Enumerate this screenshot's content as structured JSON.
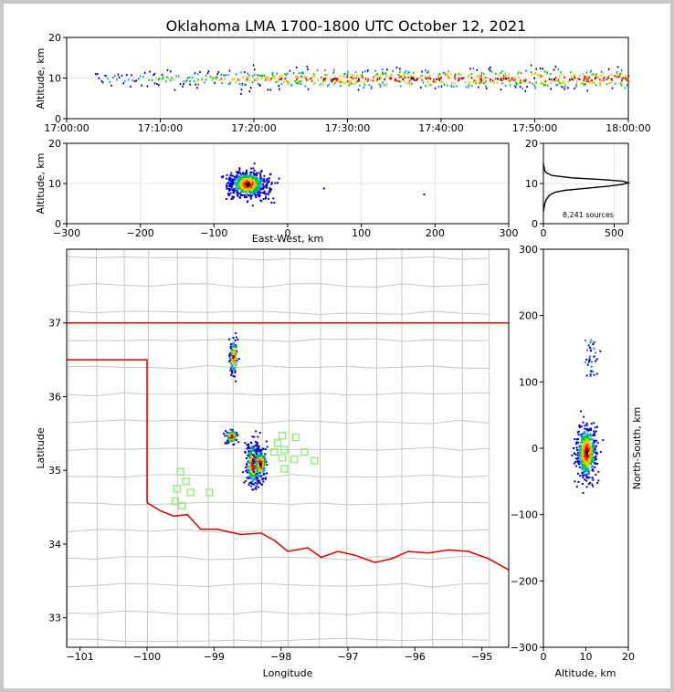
{
  "figure": {
    "title": "Oklahoma LMA 1700-1800 UTC October 12, 2021"
  },
  "chart_data": [
    {
      "id": "time_height",
      "type": "scatter",
      "title": "",
      "xlabel": "",
      "ylabel": "Altitude, km",
      "xticks": [
        "17:00:00",
        "17:10:00",
        "17:20:00",
        "17:30:00",
        "17:40:00",
        "17:50:00",
        "18:00:00"
      ],
      "xlim_minutes": [
        0,
        60
      ],
      "ylim": [
        0,
        20
      ],
      "yticks": [
        0,
        10,
        20
      ],
      "activity_start_min": 3,
      "main_altitude_km": 10,
      "max_altitude_km": 13
    },
    {
      "id": "ew_height",
      "type": "scatter",
      "xlabel": "East-West, km",
      "ylabel": "Altitude, km",
      "xlim": [
        -300,
        300
      ],
      "xticks": [
        -300,
        -200,
        -100,
        0,
        100,
        200,
        300
      ],
      "ylim": [
        0,
        20
      ],
      "yticks": [
        0,
        10,
        20
      ],
      "cluster_center_km": [
        -55,
        10
      ],
      "cluster_half_width_km": 30,
      "outliers_km": [
        [
          184,
          7.5
        ],
        [
          48,
          9
        ]
      ]
    },
    {
      "id": "altitude_histogram",
      "type": "line",
      "xlim": [
        0,
        600
      ],
      "xticks": [
        0,
        500
      ],
      "ylim": [
        0,
        20
      ],
      "yticks": [
        0,
        10,
        20
      ],
      "annotation": "8,241 sources",
      "x": [
        0,
        5,
        10,
        20,
        40,
        80,
        150,
        300,
        450,
        560,
        600,
        560,
        400,
        200,
        60,
        25,
        12,
        8,
        5,
        3,
        2,
        1
      ],
      "y": [
        3,
        4,
        5,
        6,
        7,
        7.8,
        8.3,
        8.8,
        9.3,
        9.8,
        10.2,
        10.6,
        11,
        11.4,
        12,
        12.6,
        13,
        13.5,
        14,
        14.3,
        14.6,
        15
      ]
    },
    {
      "id": "plan_view_map",
      "type": "scatter",
      "xlabel": "Longitude",
      "ylabel": "Latitude",
      "xlim": [
        -101.2,
        -94.6
      ],
      "xticks": [
        -101,
        -100,
        -99,
        -98,
        -97,
        -96,
        -95
      ],
      "ylim": [
        32.6,
        38
      ],
      "yticks": [
        33,
        34,
        35,
        36,
        37
      ],
      "state_border_color": "#e00000",
      "county_line_color": "#c8c8c8",
      "station_color": "#90ee70",
      "lma_stations": [
        [
          -99.55,
          34.75
        ],
        [
          -99.5,
          34.98
        ],
        [
          -99.42,
          34.85
        ],
        [
          -99.35,
          34.7
        ],
        [
          -99.58,
          34.58
        ],
        [
          -99.48,
          34.52
        ],
        [
          -99.07,
          34.7
        ],
        [
          -97.98,
          35.47
        ],
        [
          -97.78,
          35.45
        ],
        [
          -98.05,
          35.37
        ],
        [
          -97.95,
          35.28
        ],
        [
          -98.1,
          35.25
        ],
        [
          -97.65,
          35.25
        ],
        [
          -97.98,
          35.17
        ],
        [
          -97.8,
          35.15
        ],
        [
          -97.5,
          35.13
        ],
        [
          -97.95,
          35.02
        ]
      ],
      "source_clusters": [
        {
          "lon": -98.42,
          "lat": 35.1,
          "rx": 0.12,
          "ry": 0.32
        },
        {
          "lon": -98.32,
          "lat": 35.1,
          "rx": 0.1,
          "ry": 0.22
        },
        {
          "lon": -98.75,
          "lat": 35.47,
          "rx": 0.1,
          "ry": 0.1
        },
        {
          "lon": -98.72,
          "lat": 36.55,
          "rx": 0.06,
          "ry": 0.25
        }
      ]
    },
    {
      "id": "ns_height",
      "type": "scatter",
      "xlabel": "Altitude, km",
      "ylabel": "North-South, km",
      "xlim": [
        0,
        20
      ],
      "xticks": [
        0,
        10,
        20
      ],
      "ylim": [
        -300,
        300
      ],
      "yticks": [
        300,
        200,
        100,
        0,
        -100,
        -200,
        -300
      ],
      "cluster_center": [
        10,
        -5
      ],
      "upper_branch_km": [
        110,
        165
      ]
    }
  ],
  "colors": {
    "density": [
      "#0000cc",
      "#1e78ff",
      "#00b4b4",
      "#00c800",
      "#b4dc00",
      "#ffb400",
      "#ff2800",
      "#c80000",
      "#000000"
    ]
  }
}
